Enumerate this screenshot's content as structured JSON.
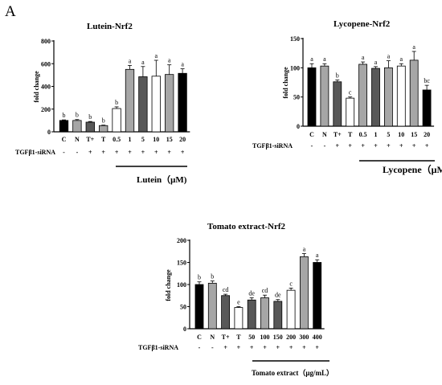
{
  "figure": {
    "panel_letter": "A"
  },
  "colors": {
    "black": "#000000",
    "dark_gray": "#585858",
    "mid_gray": "#8c8c8c",
    "light_gray": "#a6a6a6",
    "white": "#ffffff"
  },
  "chart_data": [
    {
      "type": "bar",
      "title": "Lutein-Nrf2",
      "ylabel": "fold change",
      "xlabel": "",
      "ylim": [
        0,
        800
      ],
      "yticks": [
        "0",
        "200",
        "400",
        "600",
        "800"
      ],
      "categories": [
        "C",
        "N",
        "T+",
        "T",
        "0.5",
        "1",
        "5",
        "10",
        "15",
        "20"
      ],
      "values": [
        100,
        100,
        85,
        55,
        205,
        550,
        485,
        490,
        505,
        515
      ],
      "errors": [
        5,
        8,
        6,
        4,
        15,
        35,
        90,
        140,
        85,
        40
      ],
      "colors": [
        "black",
        "light_gray",
        "dark_gray",
        "light_gray",
        "white",
        "light_gray",
        "dark_gray",
        "white",
        "light_gray",
        "black"
      ],
      "significance": [
        "b",
        "b",
        "b",
        "b",
        "b",
        "a",
        "a",
        "a",
        "a",
        "a"
      ],
      "row_label": "TGFβ1-siRNA",
      "row_signs": [
        "-",
        "-",
        "+",
        "+",
        "+",
        "+",
        "+",
        "+",
        "+",
        "+"
      ],
      "treatment_label": "Lutein（μM)",
      "grid": false,
      "legend": "none"
    },
    {
      "type": "bar",
      "title": "Lycopene-Nrf2",
      "ylabel": "fold change",
      "xlabel": "",
      "ylim": [
        0,
        150
      ],
      "yticks": [
        "0",
        "50",
        "100",
        "150"
      ],
      "categories": [
        "C",
        "N",
        "T+",
        "T",
        "0.5",
        "1",
        "5",
        "10",
        "15",
        "20"
      ],
      "values": [
        100,
        103,
        76,
        48,
        106,
        99,
        100,
        103,
        113,
        62
      ],
      "errors": [
        7,
        4,
        3,
        2,
        4,
        3,
        12,
        4,
        15,
        8
      ],
      "colors": [
        "black",
        "light_gray",
        "dark_gray",
        "white",
        "light_gray",
        "dark_gray",
        "light_gray",
        "white",
        "light_gray",
        "black"
      ],
      "significance": [
        "a",
        "a",
        "b",
        "c",
        "a",
        "a",
        "a",
        "a",
        "a",
        "bc"
      ],
      "row_label": "TGFβ1-siRNA",
      "row_signs": [
        "-",
        "-",
        "+",
        "+",
        "+",
        "+",
        "+",
        "+",
        "+",
        "+"
      ],
      "treatment_label": "Lycopene（μM)",
      "grid": false,
      "legend": "none"
    },
    {
      "type": "bar",
      "title": "Tomato extract-Nrf2",
      "ylabel": "fold change",
      "xlabel": "",
      "ylim": [
        0,
        200
      ],
      "yticks": [
        "0",
        "50",
        "100",
        "150",
        "200"
      ],
      "categories": [
        "C",
        "N",
        "T+",
        "T",
        "50",
        "100",
        "150",
        "200",
        "300",
        "400"
      ],
      "values": [
        100,
        103,
        75,
        48,
        65,
        70,
        62,
        87,
        163,
        150
      ],
      "errors": [
        6,
        5,
        3,
        2,
        5,
        6,
        4,
        5,
        7,
        6
      ],
      "colors": [
        "black",
        "light_gray",
        "dark_gray",
        "white",
        "dark_gray",
        "light_gray",
        "dark_gray",
        "white",
        "light_gray",
        "black"
      ],
      "significance": [
        "b",
        "b",
        "cd",
        "e",
        "de",
        "cd",
        "de",
        "c",
        "a",
        "a"
      ],
      "row_label": "TGFβ1-siRNA",
      "row_signs": [
        "-",
        "-",
        "+",
        "+",
        "+",
        "+",
        "+",
        "+",
        "+",
        "+"
      ],
      "treatment_label": "Tomato extract（μg/mL）",
      "grid": false,
      "legend": "none"
    }
  ]
}
